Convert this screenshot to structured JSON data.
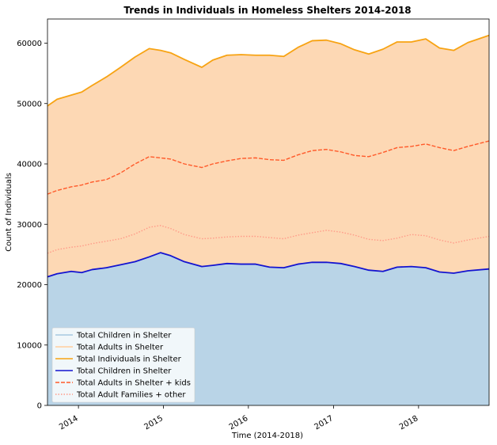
{
  "chart_data": {
    "type": "area",
    "title": "Trends in Individuals in Homeless Shelters 2014-2018",
    "xlabel": "Time (2014-2018)",
    "ylabel": "Count of Individuals",
    "xlim": [
      "2013-08-21",
      "2018-10-31"
    ],
    "ylim": [
      0,
      64000
    ],
    "x_ticks": [
      {
        "date": "2014-01-01",
        "label": "2014"
      },
      {
        "date": "2015-01-01",
        "label": "2015"
      },
      {
        "date": "2016-01-01",
        "label": "2016"
      },
      {
        "date": "2017-01-01",
        "label": "2017"
      },
      {
        "date": "2018-01-01",
        "label": "2018"
      }
    ],
    "y_ticks": [
      0,
      10000,
      20000,
      30000,
      40000,
      50000,
      60000
    ],
    "grid": false,
    "legend_position": "bottom-left",
    "x": [
      "2013-08-21",
      "2013-10-01",
      "2013-12-01",
      "2014-01-15",
      "2014-03-01",
      "2014-05-01",
      "2014-07-01",
      "2014-09-01",
      "2014-11-01",
      "2014-12-20",
      "2015-02-01",
      "2015-04-01",
      "2015-06-15",
      "2015-08-01",
      "2015-10-01",
      "2015-12-01",
      "2016-02-01",
      "2016-04-01",
      "2016-06-01",
      "2016-08-01",
      "2016-10-01",
      "2016-12-01",
      "2017-02-01",
      "2017-04-01",
      "2017-06-01",
      "2017-08-01",
      "2017-10-01",
      "2017-12-01",
      "2018-02-01",
      "2018-04-01",
      "2018-06-01",
      "2018-08-01",
      "2018-10-31"
    ],
    "series": [
      {
        "name": "Total Children in Shelter",
        "style": "area",
        "color": "#b9d4e7",
        "values": [
          21300,
          21800,
          22200,
          22000,
          22500,
          22800,
          23300,
          23800,
          24600,
          25300,
          24800,
          23800,
          23000,
          23200,
          23500,
          23400,
          23400,
          22900,
          22800,
          23400,
          23700,
          23700,
          23500,
          23000,
          22400,
          22200,
          22900,
          23000,
          22800,
          22100,
          21900,
          22300,
          22600
        ]
      },
      {
        "name": "Total Adults in Shelter",
        "style": "area",
        "color": "#fdd8b4",
        "values": [
          28300,
          28900,
          29200,
          29900,
          30500,
          31600,
          32700,
          33900,
          34500,
          33500,
          33600,
          33500,
          33000,
          34000,
          34500,
          34700,
          34600,
          35100,
          35000,
          35900,
          36700,
          36800,
          36400,
          35900,
          35800,
          36800,
          37300,
          37200,
          37900,
          37100,
          36900,
          37800,
          38700
        ]
      },
      {
        "name": "Total Individuals in Shelter",
        "style": "line",
        "color": "#f7a313",
        "values": [
          49600,
          50700,
          51400,
          51900,
          53000,
          54400,
          56000,
          57700,
          59100,
          58800,
          58400,
          57300,
          56000,
          57200,
          58000,
          58100,
          58000,
          58000,
          57800,
          59300,
          60400,
          60500,
          59900,
          58900,
          58200,
          59000,
          60200,
          60200,
          60700,
          59200,
          58800,
          60100,
          61300
        ]
      },
      {
        "name": "Total Children in Shelter",
        "style": "line",
        "color": "#1414d0",
        "values": [
          21300,
          21800,
          22200,
          22000,
          22500,
          22800,
          23300,
          23800,
          24600,
          25300,
          24800,
          23800,
          23000,
          23200,
          23500,
          23400,
          23400,
          22900,
          22800,
          23400,
          23700,
          23700,
          23500,
          23000,
          22400,
          22200,
          22900,
          23000,
          22800,
          22100,
          21900,
          22300,
          22600
        ]
      },
      {
        "name": "Total Adults in Shelter + kids",
        "style": "dashed",
        "color": "#ff5a2a",
        "values": [
          35000,
          35600,
          36200,
          36500,
          37000,
          37400,
          38500,
          40000,
          41200,
          41000,
          40800,
          40000,
          39400,
          40000,
          40500,
          40900,
          41000,
          40700,
          40600,
          41500,
          42200,
          42400,
          42000,
          41400,
          41200,
          41900,
          42700,
          42900,
          43300,
          42700,
          42200,
          42900,
          43800
        ]
      },
      {
        "name": "Total Adult Families + other",
        "style": "dotted",
        "color": "#ff9a88",
        "values": [
          25200,
          25800,
          26200,
          26400,
          26800,
          27200,
          27600,
          28400,
          29500,
          29800,
          29300,
          28300,
          27600,
          27700,
          27900,
          28000,
          28000,
          27800,
          27600,
          28200,
          28600,
          29000,
          28700,
          28200,
          27500,
          27300,
          27700,
          28300,
          28100,
          27400,
          26900,
          27400,
          28000
        ]
      }
    ],
    "legend": [
      {
        "label": "Total Children in Shelter",
        "kind": "area",
        "color": "#b9d4e7"
      },
      {
        "label": "Total Adults in Shelter",
        "kind": "area",
        "color": "#fdd8b4"
      },
      {
        "label": "Total Individuals in Shelter",
        "kind": "solid",
        "color": "#f7a313"
      },
      {
        "label": "Total Children in Shelter",
        "kind": "solid",
        "color": "#1414d0"
      },
      {
        "label": "Total Adults in Shelter + kids",
        "kind": "dashed",
        "color": "#ff5a2a"
      },
      {
        "label": "Total Adult Families + other",
        "kind": "dotted",
        "color": "#ff9a88"
      }
    ]
  }
}
